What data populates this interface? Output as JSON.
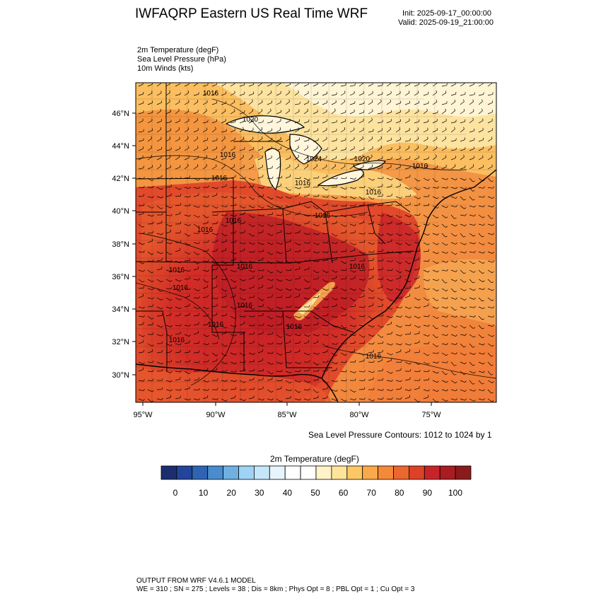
{
  "header": {
    "title": "IWFAQRP Eastern US Real Time WRF",
    "init": "Init: 2025-09-17_00:00:00",
    "valid": "Valid: 2025-09-19_21:00:00"
  },
  "fields": [
    "2m Temperature   (degF)",
    "Sea Level Pressure   (hPa)",
    "10m Winds   (kts)"
  ],
  "map": {
    "lat_ticks": [
      "46°N",
      "44°N",
      "42°N",
      "40°N",
      "38°N",
      "36°N",
      "34°N",
      "32°N",
      "30°N"
    ],
    "lon_ticks": [
      "95°W",
      "90°W",
      "85°W",
      "80°W",
      "75°W"
    ],
    "pressure_labels": [
      "1016",
      "1020",
      "1016",
      "1024",
      "1020",
      "1016",
      "1016",
      "1016",
      "1016",
      "1016",
      "1016",
      "1016",
      "1016",
      "1016",
      "1016",
      "1016",
      "1016",
      "1016",
      "1016",
      "1016",
      "1016"
    ],
    "contour_note": "Sea Level Pressure Contours: 1012 to 1024 by 1"
  },
  "colorbar": {
    "title": "2m Temperature  (degF)",
    "ticks": [
      "0",
      "10",
      "20",
      "30",
      "40",
      "50",
      "60",
      "70",
      "80",
      "90",
      "100"
    ],
    "colors": [
      "#1b2f6e",
      "#23449b",
      "#2f64b4",
      "#4a8ccd",
      "#6fb0e0",
      "#9ed3f3",
      "#c5e6f8",
      "#e7f4fb",
      "#ffffff",
      "#ffffff",
      "#fff3c8",
      "#fde49a",
      "#fcc865",
      "#f9a94a",
      "#f5893a",
      "#ec6630",
      "#dd4227",
      "#c7242a",
      "#a81c22",
      "#8b1a1c"
    ]
  },
  "footer": {
    "line1": "OUTPUT FROM WRF V4.6.1 MODEL",
    "line2": "WE = 310 ; SN = 275 ; Levels = 38 ; Dis = 8km ; Phys Opt = 8 ; PBL Opt = 1 ; Cu Opt = 3"
  }
}
